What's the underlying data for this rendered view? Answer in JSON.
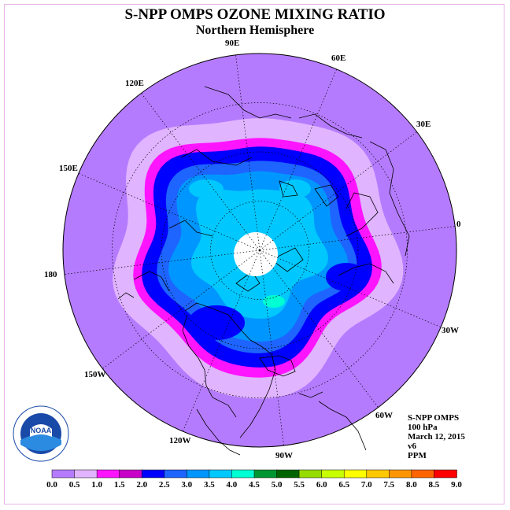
{
  "title": "S-NPP OMPS OZONE MIXING RATIO",
  "subtitle": "Northern Hemisphere",
  "longitude_labels": [
    {
      "text": "90E",
      "lon": 90
    },
    {
      "text": "60E",
      "lon": 60
    },
    {
      "text": "30E",
      "lon": 30
    },
    {
      "text": "0",
      "lon": 0
    },
    {
      "text": "30W",
      "lon": -30
    },
    {
      "text": "60W",
      "lon": -60
    },
    {
      "text": "90W",
      "lon": -90
    },
    {
      "text": "120W",
      "lon": -120
    },
    {
      "text": "150W",
      "lon": -150
    },
    {
      "text": "180",
      "lon": 180
    },
    {
      "text": "150E",
      "lon": 150
    },
    {
      "text": "120E",
      "lon": 120
    }
  ],
  "info": {
    "instrument": "S-NPP OMPS",
    "level": "100 hPa",
    "date": "March 12, 2015",
    "version": "v6",
    "units": "PPM"
  },
  "logo": {
    "text": "NOAA"
  },
  "colorbar": {
    "ticks": [
      "0.0",
      "0.5",
      "1.0",
      "1.5",
      "2.0",
      "2.5",
      "3.0",
      "3.5",
      "4.0",
      "4.5",
      "5.0",
      "5.5",
      "6.0",
      "6.5",
      "7.0",
      "7.5",
      "8.0",
      "8.5",
      "9.0"
    ],
    "colors": [
      "#b57bff",
      "#e0b4ff",
      "#ff14ff",
      "#c800c8",
      "#0000ff",
      "#1e64ff",
      "#0096ff",
      "#00c8ff",
      "#00ffd2",
      "#009632",
      "#006400",
      "#96dc00",
      "#c8ff00",
      "#ffff00",
      "#ffc800",
      "#ff9600",
      "#ff6400",
      "#ff0000",
      "#8c5a3c"
    ]
  },
  "colors": {
    "outer": "#b57bff",
    "band_light": "#e0b4ff",
    "band_magenta": "#ff14ff",
    "band_blue": "#0000ff",
    "band_mid": "#1e64ff",
    "band_light_blue": "#0096ff",
    "band_cyan": "#00c8ff",
    "band_teal": "#00ffd2"
  }
}
